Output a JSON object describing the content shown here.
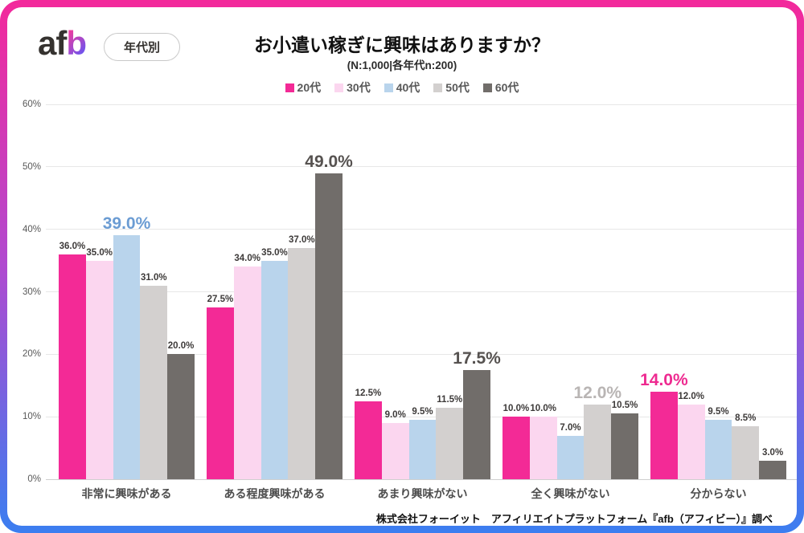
{
  "frame": {
    "border_gradient": [
      "#f3299b",
      "#b04ad0",
      "#3b7ef0"
    ]
  },
  "header": {
    "logo_af": "af",
    "logo_b": "b",
    "badge": "年代別",
    "title": "お小遣い稼ぎに興味はありますか？",
    "subtitle": "(N:1,000|各年代n:200)"
  },
  "chart_data": {
    "type": "bar",
    "title": "お小遣い稼ぎに興味はありますか？",
    "subtitle": "(N:1,000|各年代n:200)",
    "categories": [
      "非常に興味がある",
      "ある程度興味がある",
      "あまり興味がない",
      "全く興味がない",
      "分からない"
    ],
    "series": [
      {
        "name": "20代",
        "color": "#f32a96",
        "values": [
          36.0,
          27.5,
          12.5,
          10.0,
          14.0
        ]
      },
      {
        "name": "30代",
        "color": "#fbd6ef",
        "values": [
          35.0,
          34.0,
          9.0,
          10.0,
          12.0
        ]
      },
      {
        "name": "40代",
        "color": "#b9d4ec",
        "values": [
          39.0,
          35.0,
          9.5,
          7.0,
          9.5
        ]
      },
      {
        "name": "50代",
        "color": "#d3d0cf",
        "values": [
          31.0,
          37.0,
          11.5,
          12.0,
          8.5
        ]
      },
      {
        "name": "60代",
        "color": "#716d6a",
        "values": [
          20.0,
          49.0,
          17.5,
          10.5,
          3.0
        ]
      }
    ],
    "highlights": [
      {
        "category": 0,
        "series": 2,
        "color": "#6b9cd3"
      },
      {
        "category": 1,
        "series": 4,
        "color": "#565250"
      },
      {
        "category": 2,
        "series": 4,
        "color": "#565250"
      },
      {
        "category": 3,
        "series": 3,
        "color": "#b9b5b4"
      },
      {
        "category": 4,
        "series": 0,
        "color": "#ee2a90"
      }
    ],
    "ylim": [
      0,
      60
    ],
    "yticks": [
      "60%",
      "50%",
      "40%",
      "30%",
      "20%",
      "10%",
      "0%"
    ],
    "grid": true,
    "legend_position": "top",
    "value_label_format": "0.0%"
  },
  "footer": {
    "source": "株式会社フォーイット　アフィリエイトプラットフォーム『afb（アフィビー）』調べ"
  }
}
